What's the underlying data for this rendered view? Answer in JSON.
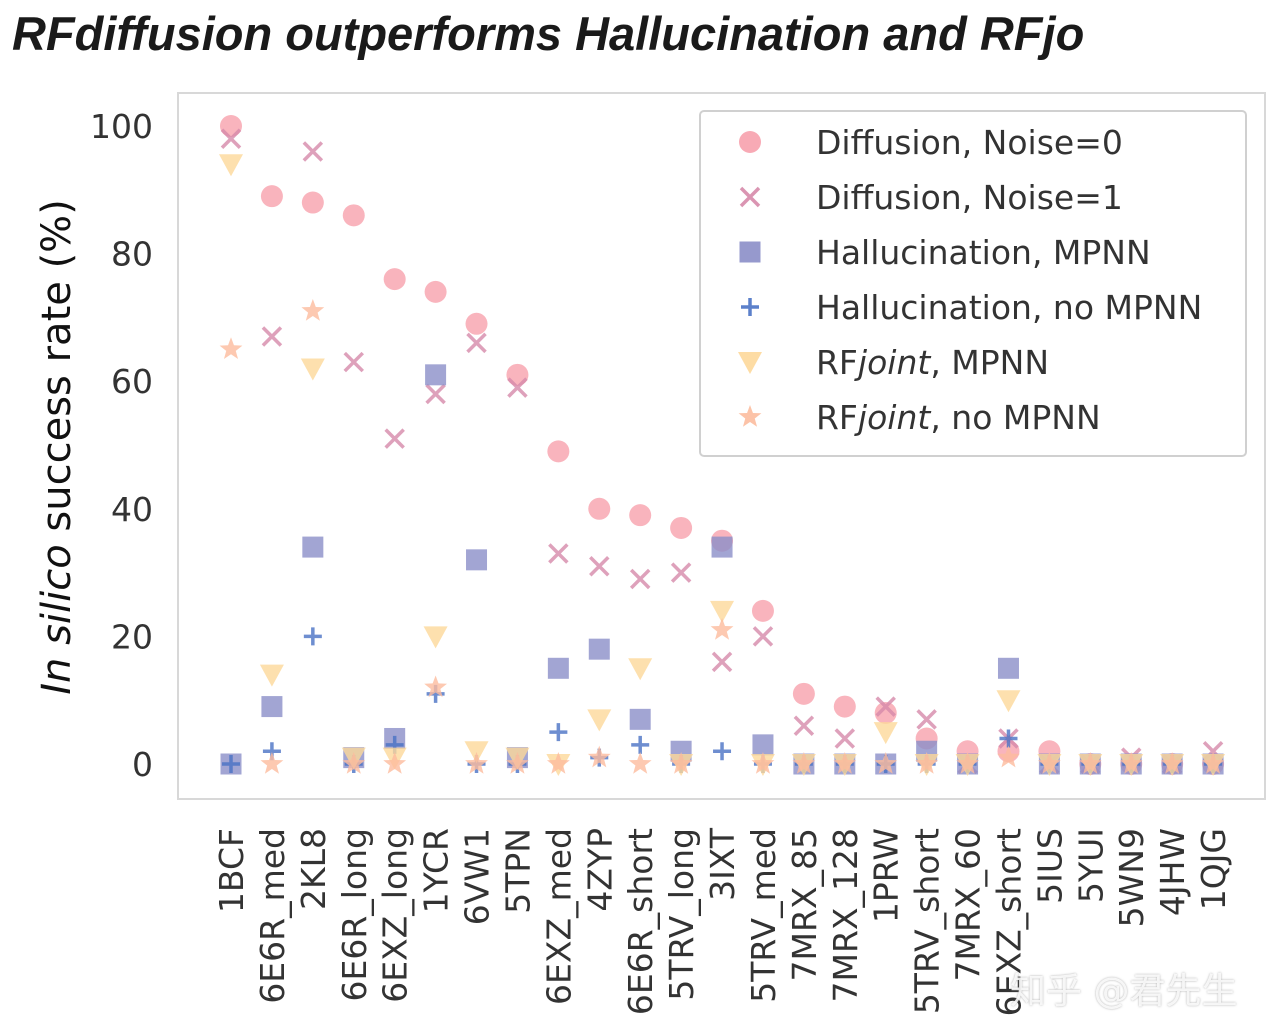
{
  "chart_data": {
    "type": "scatter",
    "title": "RFdiffusion outperforms Hallucination and RFjo",
    "ylabel_italic": "In silico",
    "ylabel_rest": " success rate (%)",
    "xlabel": "",
    "ylim": [
      0,
      100
    ],
    "yticks": [
      0,
      20,
      40,
      60,
      80,
      100
    ],
    "legend_position": "top-right",
    "categories": [
      "1BCF",
      "6E6R_med",
      "2KL8",
      "6E6R_long",
      "6EXZ_long",
      "1YCR",
      "6VW1",
      "5TPN",
      "6EXZ_med",
      "4ZYP",
      "6E6R_short",
      "5TRV_long",
      "3IXT",
      "5TRV_med",
      "7MRX_85",
      "7MRX_128",
      "1PRW",
      "5TRV_short",
      "7MRX_60",
      "6EXZ_short",
      "5IUS",
      "5YUI",
      "5WN9",
      "4JHW",
      "1QJG"
    ],
    "series": [
      {
        "name": "Diffusion, Noise=0",
        "legend_prefix": "Diffusion, Noise=0",
        "legend_italic": "",
        "legend_suffix": "",
        "marker": "circle",
        "color": "#f7a1ad",
        "values": [
          100,
          89,
          88,
          86,
          76,
          74,
          69,
          61,
          49,
          40,
          39,
          37,
          35,
          24,
          11,
          9,
          8,
          4,
          2,
          2,
          2,
          0,
          0,
          0,
          0
        ]
      },
      {
        "name": "Diffusion, Noise=1",
        "legend_prefix": "Diffusion, Noise=1",
        "legend_italic": "",
        "legend_suffix": "",
        "marker": "x",
        "color": "#d68aaa",
        "values": [
          98,
          67,
          96,
          63,
          51,
          58,
          66,
          59,
          33,
          31,
          29,
          30,
          16,
          20,
          6,
          4,
          9,
          7,
          0,
          4,
          0,
          0,
          1,
          0,
          2
        ]
      },
      {
        "name": "Hallucination, MPNN",
        "legend_prefix": "Hallucination, MPNN",
        "legend_italic": "",
        "legend_suffix": "",
        "marker": "square",
        "color": "#8b8ec8",
        "values": [
          0,
          9,
          34,
          1,
          4,
          61,
          32,
          1,
          15,
          18,
          7,
          2,
          34,
          3,
          0,
          0,
          0,
          2,
          0,
          15,
          0,
          0,
          0,
          0,
          0
        ]
      },
      {
        "name": "Hallucination, no MPNN",
        "legend_prefix": "Hallucination, no MPNN",
        "legend_italic": "",
        "legend_suffix": "",
        "marker": "plus",
        "color": "#4a72c4",
        "values": [
          0,
          2,
          20,
          0,
          3,
          11,
          0,
          0,
          5,
          1,
          3,
          0,
          2,
          0,
          0,
          0,
          0,
          0,
          0,
          4,
          0,
          0,
          0,
          0,
          0
        ]
      },
      {
        "name": "RFjoint, MPNN",
        "legend_prefix": "RF",
        "legend_italic": "joint",
        "legend_suffix": ", MPNN",
        "marker": "triangle-down",
        "color": "#fdd89a",
        "values": [
          94,
          14,
          62,
          1,
          1,
          20,
          2,
          1,
          0,
          7,
          15,
          0,
          24,
          0,
          0,
          0,
          5,
          0,
          0,
          10,
          0,
          0,
          0,
          0,
          0
        ]
      },
      {
        "name": "RFjoint, no MPNN",
        "legend_prefix": "RF",
        "legend_italic": "joint",
        "legend_suffix": ", no MPNN",
        "marker": "star",
        "color": "#fcbc9e",
        "values": [
          65,
          0,
          71,
          0,
          0,
          12,
          0,
          0,
          0,
          1,
          0,
          0,
          21,
          0,
          0,
          0,
          0,
          0,
          0,
          1,
          0,
          0,
          0,
          0,
          0
        ]
      }
    ]
  },
  "watermark": "知乎 @君先生"
}
